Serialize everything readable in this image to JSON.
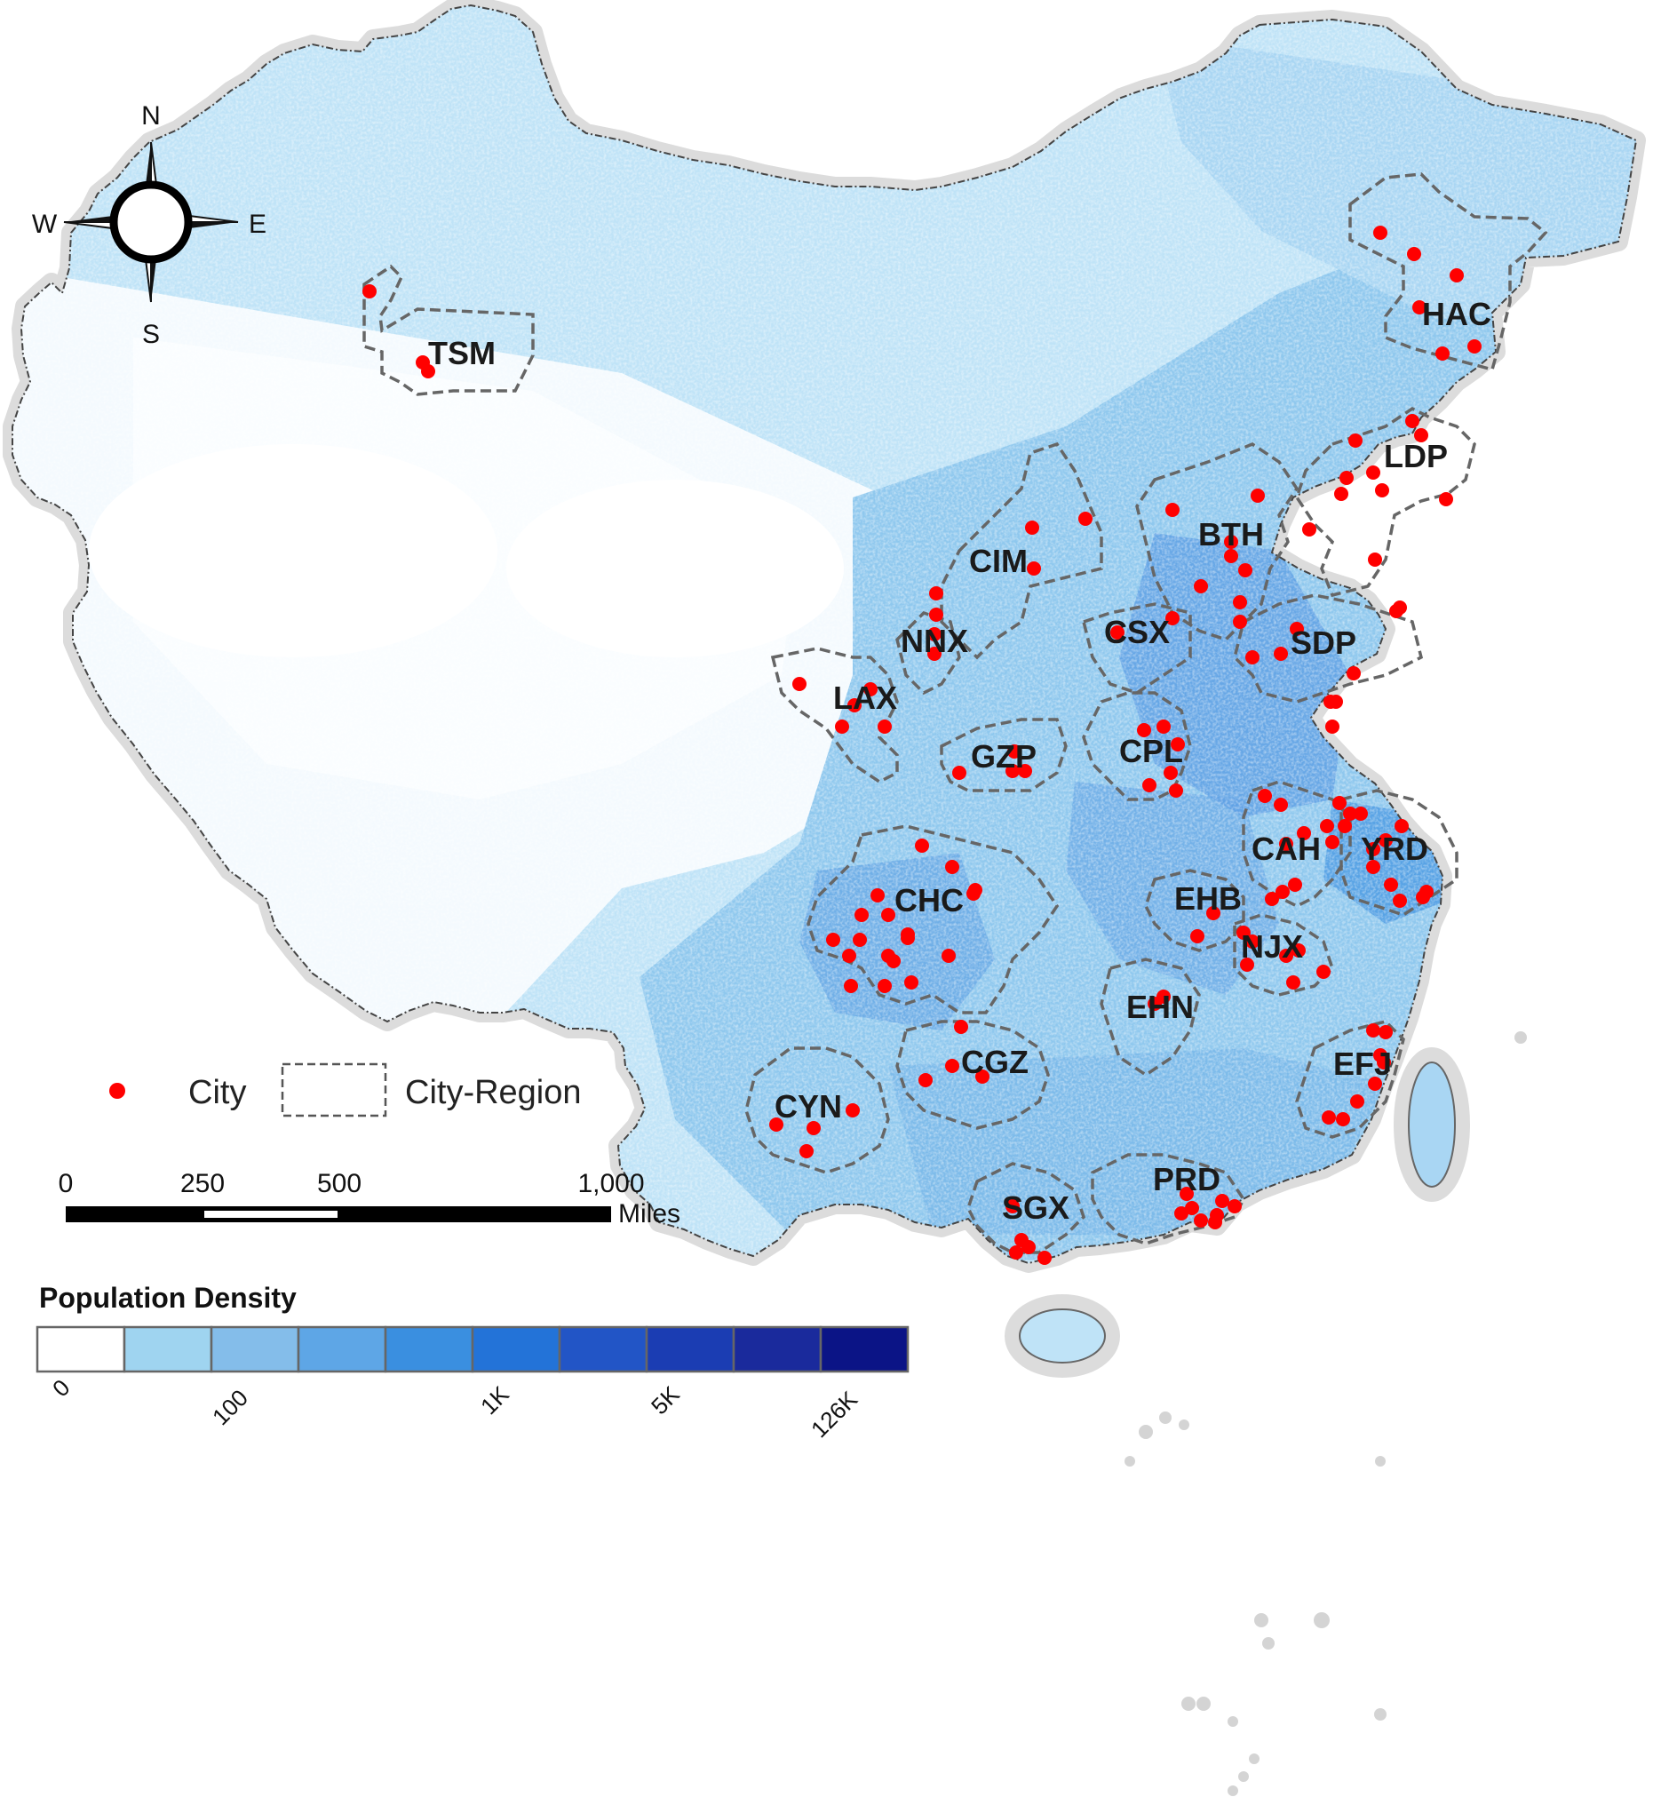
{
  "compass": {
    "north": "N",
    "south": "S",
    "east": "E",
    "west": "W",
    "icon": "compass-rose-icon"
  },
  "legend": {
    "city_label": "City",
    "region_label": "City-Region",
    "city_color": "#ff0000"
  },
  "scale_bar": {
    "ticks": [
      "0",
      "250",
      "500",
      "1,000"
    ],
    "unit": "Miles"
  },
  "density_legend": {
    "title": "Population Density",
    "colors": [
      "#ffffff",
      "#9fd4f0",
      "#84bdea",
      "#5ea6e6",
      "#3a8fe0",
      "#2373d8",
      "#2255c6",
      "#1b3db3",
      "#1a2a9c",
      "#0b1486"
    ],
    "tick_labels": [
      "0",
      "100",
      "1K",
      "5K",
      "126K"
    ]
  },
  "regions": [
    {
      "code": "TSM"
    },
    {
      "code": "HAC"
    },
    {
      "code": "LDP"
    },
    {
      "code": "BTH"
    },
    {
      "code": "CIM"
    },
    {
      "code": "CSX"
    },
    {
      "code": "NNX"
    },
    {
      "code": "SDP"
    },
    {
      "code": "LAX"
    },
    {
      "code": "GZP"
    },
    {
      "code": "CPL"
    },
    {
      "code": "CAH"
    },
    {
      "code": "YRD"
    },
    {
      "code": "CHC"
    },
    {
      "code": "EHB"
    },
    {
      "code": "NJX"
    },
    {
      "code": "EHN"
    },
    {
      "code": "EFJ"
    },
    {
      "code": "CGZ"
    },
    {
      "code": "CYN"
    },
    {
      "code": "PRD"
    },
    {
      "code": "SGX"
    }
  ],
  "map_colors": {
    "land_base": "#bfe3f7",
    "land_east": "#8fc8ee",
    "land_dense": "#5c9fe3",
    "buffer_gray": "#dcdcdc",
    "border_dark": "#444444"
  }
}
